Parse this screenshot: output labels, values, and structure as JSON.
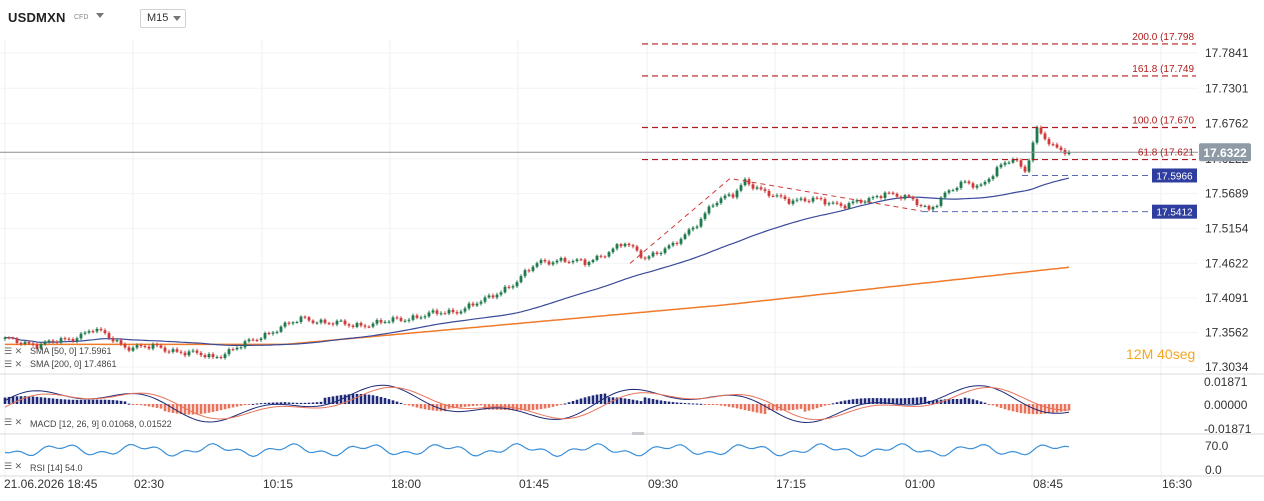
{
  "header": {
    "symbol": "USDMXN",
    "instrument_type": "CFD",
    "timeframe": "M15"
  },
  "countdown": {
    "minutes": "12",
    "m_unit": "M",
    "seconds": "40",
    "s_unit": "seg"
  },
  "indicators": {
    "sma50_label": "SMA [50, 0] 17.5961",
    "sma200_label": "SMA [200, 0] 17.4861",
    "macd_label": "MACD [12, 26, 9] 0.01068, 0.01522",
    "rsi_label": "RSI [14] 54.0"
  },
  "colors": {
    "up": "#1f7a4d",
    "down": "#d03a3a",
    "sma50": "#3a4a9a",
    "sma200": "#f07a2a",
    "fib": "#b01c1c",
    "level_box": "#2f3e9e",
    "price_box": "#8e9aa6",
    "macd_pos": "#1e2a78",
    "macd_neg": "#e8735a",
    "rsi": "#3a8fd8"
  },
  "chart_data": {
    "type": "candlestick",
    "symbol": "USDMXN",
    "timeframe": "M15",
    "current_price": 17.6322,
    "y_ticks": [
      17.7841,
      17.7301,
      17.6762,
      17.6222,
      17.5689,
      17.5154,
      17.4622,
      17.4091,
      17.3562,
      17.3034
    ],
    "x_tick_labels": [
      "21.06.2026 18:45",
      "02:30",
      "10:15",
      "18:00",
      "01:45",
      "09:30",
      "17:15",
      "01:00",
      "08:45",
      "16:30"
    ],
    "fib_levels": [
      {
        "ratio": "200.0",
        "price": 17.798,
        "label": "200.0 (17.798"
      },
      {
        "ratio": "161.8",
        "price": 17.749,
        "label": "161.8 (17.749"
      },
      {
        "ratio": "100.0",
        "price": 17.67,
        "label": "100.0 (17.670"
      },
      {
        "ratio": "61.8",
        "price": 17.621,
        "label": "61.8 (17.621"
      }
    ],
    "horizontal_levels": [
      {
        "price": 17.5966,
        "label": "17.5966"
      },
      {
        "price": 17.5412,
        "label": "17.5412"
      }
    ],
    "sma50_last": 17.5961,
    "sma200_last": 17.4861,
    "macd": {
      "params": "12, 26, 9",
      "macd": 0.01068,
      "signal": 0.01522,
      "y_ticks": [
        0.01871,
        0.0,
        -0.01871
      ]
    },
    "rsi": {
      "period": 14,
      "value": 54.0,
      "y_ticks": [
        70.0,
        0.0
      ]
    },
    "anchors": [
      {
        "i": 0,
        "p": 17.345
      },
      {
        "i": 8,
        "p": 17.338
      },
      {
        "i": 16,
        "p": 17.345
      },
      {
        "i": 22,
        "p": 17.362
      },
      {
        "i": 30,
        "p": 17.335
      },
      {
        "i": 38,
        "p": 17.333
      },
      {
        "i": 46,
        "p": 17.325
      },
      {
        "i": 52,
        "p": 17.318
      },
      {
        "i": 60,
        "p": 17.338
      },
      {
        "i": 68,
        "p": 17.362
      },
      {
        "i": 75,
        "p": 17.378
      },
      {
        "i": 80,
        "p": 17.372
      },
      {
        "i": 87,
        "p": 17.367
      },
      {
        "i": 95,
        "p": 17.372
      },
      {
        "i": 104,
        "p": 17.382
      },
      {
        "i": 112,
        "p": 17.388
      },
      {
        "i": 120,
        "p": 17.405
      },
      {
        "i": 128,
        "p": 17.435
      },
      {
        "i": 133,
        "p": 17.462
      },
      {
        "i": 138,
        "p": 17.468
      },
      {
        "i": 145,
        "p": 17.462
      },
      {
        "i": 150,
        "p": 17.478
      },
      {
        "i": 155,
        "p": 17.492
      },
      {
        "i": 160,
        "p": 17.472
      },
      {
        "i": 167,
        "p": 17.488
      },
      {
        "i": 172,
        "p": 17.518
      },
      {
        "i": 177,
        "p": 17.552
      },
      {
        "i": 182,
        "p": 17.568
      },
      {
        "i": 185,
        "p": 17.59
      },
      {
        "i": 190,
        "p": 17.568
      },
      {
        "i": 196,
        "p": 17.56
      },
      {
        "i": 203,
        "p": 17.558
      },
      {
        "i": 210,
        "p": 17.552
      },
      {
        "i": 216,
        "p": 17.558
      },
      {
        "i": 220,
        "p": 17.572
      },
      {
        "i": 226,
        "p": 17.56
      },
      {
        "i": 231,
        "p": 17.545
      },
      {
        "i": 235,
        "p": 17.568
      },
      {
        "i": 240,
        "p": 17.585
      },
      {
        "i": 244,
        "p": 17.582
      },
      {
        "i": 248,
        "p": 17.605
      },
      {
        "i": 252,
        "p": 17.622
      },
      {
        "i": 255,
        "p": 17.605
      },
      {
        "i": 258,
        "p": 17.668
      },
      {
        "i": 262,
        "p": 17.638
      },
      {
        "i": 266,
        "p": 17.632
      }
    ]
  }
}
